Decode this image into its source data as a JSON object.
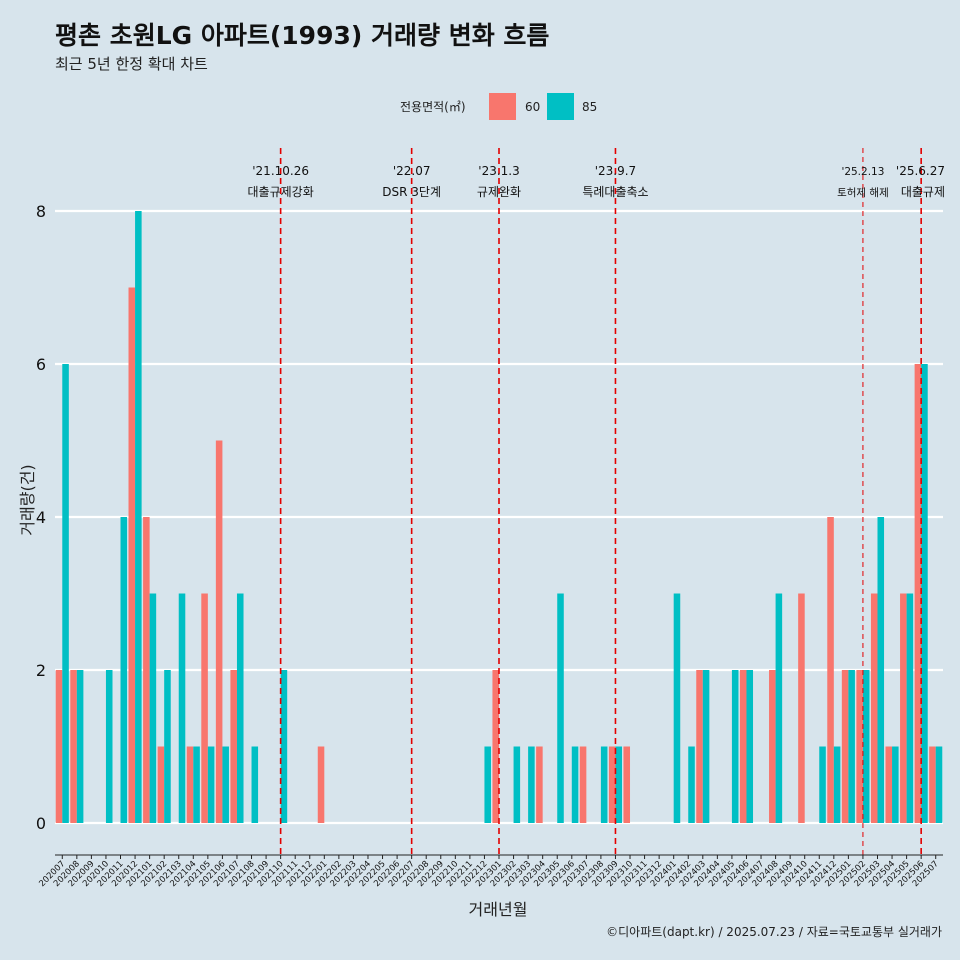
{
  "chart_data": {
    "type": "bar",
    "title": "평촌 초원LG 아파트(1993) 거래량 변화 흐름",
    "subtitle": "최근 5년 한정 확대 차트",
    "xlabel": "거래년월",
    "ylabel": "거래량(건)",
    "ylim": [
      0,
      8
    ],
    "yticks": [
      0,
      2,
      4,
      6,
      8
    ],
    "legend": {
      "title": "전용면적(㎡)",
      "position": "top",
      "entries": [
        {
          "name": "60",
          "color": "#F8766D"
        },
        {
          "name": "85",
          "color": "#00BFC4"
        }
      ]
    },
    "categories": [
      "202007",
      "202008",
      "202009",
      "202010",
      "202011",
      "202012",
      "202101",
      "202102",
      "202103",
      "202104",
      "202105",
      "202106",
      "202107",
      "202108",
      "202109",
      "202110",
      "202111",
      "202112",
      "202201",
      "202202",
      "202203",
      "202204",
      "202205",
      "202206",
      "202207",
      "202208",
      "202209",
      "202210",
      "202211",
      "202212",
      "202301",
      "202302",
      "202303",
      "202304",
      "202305",
      "202306",
      "202307",
      "202308",
      "202309",
      "202310",
      "202311",
      "202312",
      "202401",
      "202402",
      "202403",
      "202404",
      "202405",
      "202406",
      "202407",
      "202408",
      "202409",
      "202410",
      "202411",
      "202412",
      "202501",
      "202502",
      "202503",
      "202504",
      "202505",
      "202506",
      "202507"
    ],
    "series": [
      {
        "name": "60",
        "color": "#F8766D",
        "values": [
          2,
          2,
          0,
          0,
          0,
          7,
          4,
          1,
          0,
          1,
          3,
          5,
          2,
          0,
          0,
          0,
          0,
          0,
          1,
          0,
          0,
          0,
          0,
          0,
          0,
          0,
          0,
          0,
          0,
          0,
          2,
          0,
          0,
          1,
          0,
          0,
          1,
          0,
          1,
          1,
          0,
          0,
          0,
          0,
          2,
          0,
          0,
          2,
          0,
          2,
          0,
          3,
          0,
          4,
          2,
          2,
          3,
          1,
          3,
          6,
          1
        ]
      },
      {
        "name": "85",
        "color": "#00BFC4",
        "values": [
          6,
          2,
          0,
          2,
          4,
          8,
          3,
          2,
          3,
          1,
          1,
          1,
          3,
          1,
          0,
          2,
          0,
          0,
          0,
          0,
          0,
          0,
          0,
          0,
          0,
          0,
          0,
          0,
          0,
          1,
          0,
          1,
          1,
          0,
          3,
          1,
          0,
          1,
          1,
          0,
          0,
          0,
          3,
          1,
          2,
          0,
          2,
          2,
          0,
          3,
          0,
          0,
          1,
          1,
          2,
          2,
          4,
          1,
          3,
          6,
          1
        ]
      }
    ],
    "events": [
      {
        "month": "202110",
        "date": "'21.10.26",
        "label": "대출규제강화"
      },
      {
        "month": "202207",
        "date": "'22.07",
        "label": "DSR 3단계"
      },
      {
        "month": "202301",
        "date": "'23.1.3",
        "label": "규제완화"
      },
      {
        "month": "202309",
        "date": "'23.9.7",
        "label": "특례대출축소"
      },
      {
        "month": "202502",
        "date": "'25.2.13",
        "label": "토허제 해제"
      },
      {
        "month": "202506",
        "date": "'25.6.27",
        "label": "대출규제"
      }
    ],
    "caption": "©디아파트(dapt.kr) / 2025.07.23 / 자료=국토교통부 실거래가"
  }
}
